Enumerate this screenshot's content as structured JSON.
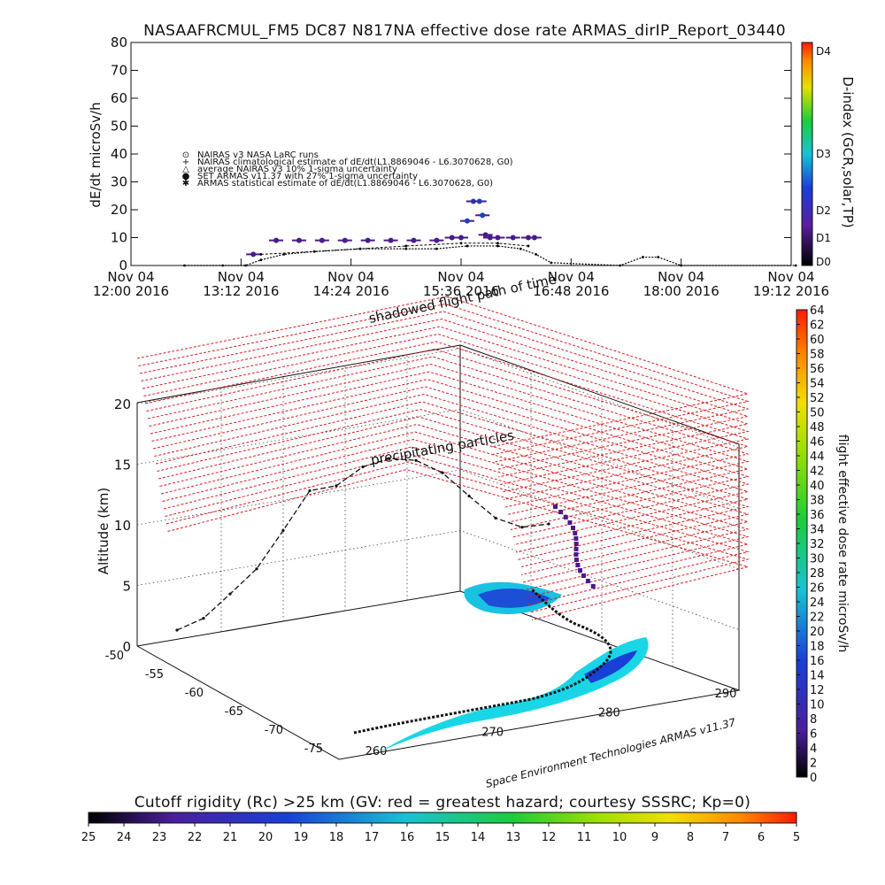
{
  "title": "NASAAFRCMUL_FM5 DC87 N817NA effective dose rate ARMAS_dirIP_Report_03440",
  "top_chart": {
    "ylabel": "dE/dt microSv/h",
    "yticks": [
      "80",
      "70",
      "60",
      "50",
      "40",
      "30",
      "20",
      "10",
      "0"
    ],
    "xticks": [
      {
        "d": "Nov 04",
        "t": "12:00 2016"
      },
      {
        "d": "Nov 04",
        "t": "13:12 2016"
      },
      {
        "d": "Nov 04",
        "t": "14:24 2016"
      },
      {
        "d": "Nov 04",
        "t": "15:36 2016"
      },
      {
        "d": "Nov 04",
        "t": "16:48 2016"
      },
      {
        "d": "Nov 04",
        "t": "18:00 2016"
      },
      {
        "d": "Nov 04",
        "t": "19:12 2016"
      }
    ],
    "legend": [
      {
        "sym": "⊙",
        "text": "NAIRAS v3 NASA LaRC runs"
      },
      {
        "sym": "+",
        "text": "NAIRAS climatological estimate of dE/dt(L1.8869046 - L6.3070628, G0)"
      },
      {
        "sym": "△",
        "text": "average NAIRAS v3 10% 1-sigma uncertainty"
      },
      {
        "sym": "●",
        "text": "SET ARMAS v11.37 with 27% 1-sigma uncertainty",
        "color": "#1f3fbf"
      },
      {
        "sym": "✱",
        "text": "ARMAS statistical estimate of dE/dt(L1.8869046 - L6.3070628, G0)"
      }
    ],
    "dindex_label": "D-index (GCR,solar,TP)",
    "dindex_ticks": [
      "D4",
      "D3",
      "D2",
      "D1",
      "D0"
    ]
  },
  "chart_data": [
    {
      "type": "scatter",
      "title": "NASAAFRCMUL_FM5 DC87 N817NA effective dose rate ARMAS_dirIP_Report_03440",
      "xlabel": "",
      "ylabel": "dE/dt microSv/h",
      "ylim": [
        0,
        80
      ],
      "xlim": [
        "Nov 04 12:00 2016",
        "Nov 04 19:12 2016"
      ],
      "series": [
        {
          "name": "SET ARMAS v11.37 with 27% 1-sigma uncertainty",
          "color": "#4a1a8c",
          "x": [
            "13:20",
            "13:35",
            "13:50",
            "14:05",
            "14:20",
            "14:35",
            "14:50",
            "15:05",
            "15:20",
            "15:30",
            "15:36",
            "15:40",
            "15:44",
            "15:48",
            "15:50",
            "15:52",
            "15:55",
            "16:00",
            "16:10",
            "16:20",
            "16:24"
          ],
          "y": [
            4,
            9,
            9,
            9,
            9,
            9,
            9,
            9,
            9,
            10,
            10,
            16,
            23,
            23,
            18,
            11,
            10,
            10,
            10,
            10,
            10
          ]
        },
        {
          "name": "NAIRAS climatological estimate of dE/dt(L1.8869046 - L6.3070628, G0)",
          "color": "#000000",
          "x": [
            "12:35",
            "13:00",
            "13:15",
            "13:25",
            "13:40",
            "14:00",
            "14:30",
            "15:00",
            "15:20",
            "15:40",
            "16:00",
            "16:15",
            "16:25",
            "16:35",
            "17:20",
            "17:35",
            "17:45",
            "18:00",
            "19:15"
          ],
          "y": [
            0,
            0,
            0,
            2,
            4,
            5,
            6,
            6,
            6,
            7,
            7,
            6,
            4,
            1,
            0,
            3,
            3,
            0,
            0
          ]
        },
        {
          "name": "ARMAS statistical estimate of dE/dt(L1.8869046 - L6.3070628, G0)",
          "color": "#000000",
          "x": [
            "13:25",
            "14:00",
            "14:30",
            "15:00",
            "15:36",
            "16:00",
            "16:20"
          ],
          "y": [
            4,
            5,
            6,
            7,
            8,
            8,
            7
          ]
        }
      ],
      "dindex_colorbar": {
        "range": [
          "D0",
          "D4"
        ],
        "ticks": [
          "D0",
          "D1",
          "D2",
          "D3",
          "D4"
        ]
      }
    },
    {
      "type": "3d_line",
      "zlabel": "Altitude (km)",
      "zticks": [
        0,
        5,
        10,
        15,
        20
      ],
      "xticks_lon": [
        260,
        270,
        280,
        290
      ],
      "yticks_lat": [
        -75,
        -70,
        -65,
        -60,
        -55,
        -50
      ],
      "annotations": [
        "shadowed flight path of time",
        "precipitating particles"
      ],
      "flight_path_km": [
        0,
        1,
        3,
        5,
        8,
        11,
        11,
        12,
        12,
        11,
        9,
        6,
        3,
        1,
        0
      ],
      "colorbar": {
        "label": "flight effective dose rate microSv/h",
        "min": 0,
        "max": 64,
        "ticks": [
          0,
          2,
          4,
          6,
          8,
          10,
          12,
          14,
          16,
          18,
          20,
          22,
          24,
          26,
          28,
          30,
          32,
          34,
          36,
          38,
          40,
          42,
          44,
          46,
          48,
          50,
          52,
          54,
          56,
          58,
          60,
          62,
          64
        ]
      }
    }
  ],
  "credit": "Space Environment Technologies ARMAS v11.37",
  "cutoff": {
    "label": "Cutoff rigidity (Rc) >25 km (GV: red = greatest hazard; courtesy SSSRC; Kp=0)",
    "ticks": [
      "25",
      "24",
      "23",
      "22",
      "21",
      "20",
      "19",
      "18",
      "17",
      "16",
      "15",
      "14",
      "13",
      "12",
      "11",
      "10",
      "9",
      "8",
      "7",
      "6",
      "5"
    ]
  },
  "colors": {
    "bg": "#ffffff",
    "ink": "#111111",
    "armas": "#4a1a8c",
    "armas_hi": "#1f3fbf",
    "grid_red": "#d62020"
  }
}
